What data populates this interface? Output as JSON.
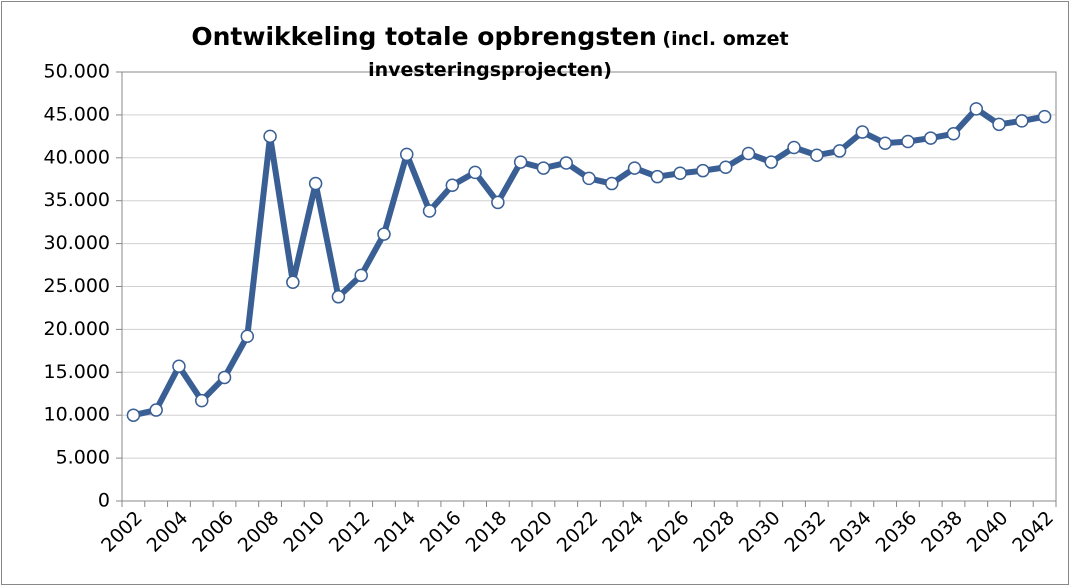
{
  "chart_data": {
    "type": "line",
    "title": "Ontwikkeling totale opbrengsten",
    "subtitle": "(incl. omzet investeringsprojecten)",
    "categories": [
      "2002",
      null,
      "2004",
      null,
      "2006",
      null,
      "2008",
      null,
      "2010",
      null,
      "2012",
      null,
      "2014",
      null,
      "2016",
      null,
      "2018",
      null,
      "2020",
      null,
      "2022",
      null,
      "2024",
      null,
      "2026",
      null,
      "2028",
      null,
      "2030",
      null,
      "2032",
      null,
      "2034",
      null,
      "2036",
      null,
      "2038",
      null,
      "2040",
      null,
      "2042"
    ],
    "series": [
      {
        "name": "Totale opbrengsten",
        "color": "#3a5f94",
        "values": [
          10000,
          10600,
          15700,
          11700,
          14400,
          19200,
          42500,
          25500,
          37000,
          23800,
          26300,
          31100,
          40400,
          33800,
          36800,
          38300,
          34800,
          39500,
          38800,
          39400,
          37600,
          37000,
          38800,
          37800,
          38200,
          38500,
          38900,
          40500,
          39500,
          41200,
          40300,
          40800,
          43000,
          41700,
          41900,
          42300,
          42800,
          45700,
          43900,
          44300,
          44800
        ]
      }
    ],
    "ylim": [
      0,
      50000
    ],
    "yticks": [
      0,
      {
        "value": 5000,
        "label": "5.000"
      },
      {
        "value": 10000,
        "label": "10.000"
      },
      {
        "value": 15000,
        "label": "15.000"
      },
      {
        "value": 20000,
        "label": "20.000"
      },
      {
        "value": 25000,
        "label": "25.000"
      },
      {
        "value": 30000,
        "label": "30.000"
      },
      {
        "value": 35000,
        "label": "35.000"
      },
      {
        "value": 40000,
        "label": "40.000"
      },
      {
        "value": 45000,
        "label": "45.000"
      },
      {
        "value": 50000,
        "label": "50.000"
      }
    ],
    "grid": true
  }
}
